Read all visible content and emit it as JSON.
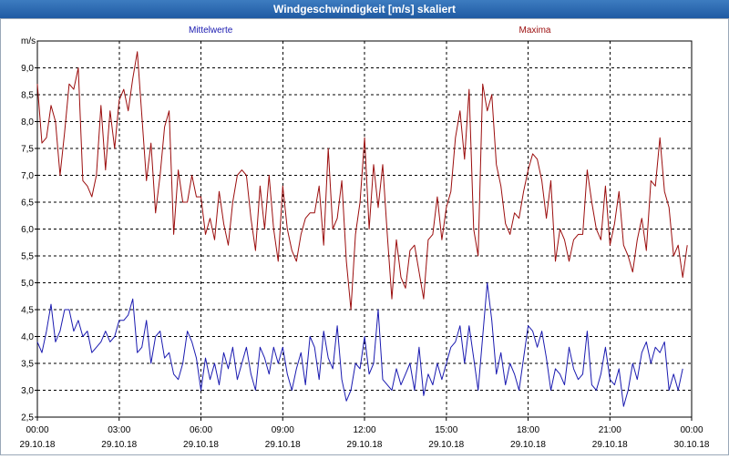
{
  "window": {
    "title": "Windgeschwindigkeit [m/s] skaliert"
  },
  "chart_data": {
    "type": "line",
    "title": "Windgeschwindigkeit [m/s] skaliert",
    "xlabel": "",
    "ylabel": "m/s",
    "xlim": [
      0,
      24
    ],
    "ylim": [
      2.5,
      9.5
    ],
    "grid": true,
    "legend_placement": "top",
    "y_ticks": [
      "2,5",
      "3,0",
      "3,5",
      "4,0",
      "4,5",
      "5,0",
      "5,5",
      "6,0",
      "6,5",
      "7,0",
      "7,5",
      "8,0",
      "8,5",
      "9,0"
    ],
    "y_tick_values": [
      2.5,
      3.0,
      3.5,
      4.0,
      4.5,
      5.0,
      5.5,
      6.0,
      6.5,
      7.0,
      7.5,
      8.0,
      8.5,
      9.0
    ],
    "x_ticks": [
      {
        "value": 0,
        "time": "00:00",
        "date": "29.10.18"
      },
      {
        "value": 3,
        "time": "03:00",
        "date": "29.10.18"
      },
      {
        "value": 6,
        "time": "06:00",
        "date": "29.10.18"
      },
      {
        "value": 9,
        "time": "09:00",
        "date": "29.10.18"
      },
      {
        "value": 12,
        "time": "12:00",
        "date": "29.10.18"
      },
      {
        "value": 15,
        "time": "15:00",
        "date": "29.10.18"
      },
      {
        "value": 18,
        "time": "18:00",
        "date": "29.10.18"
      },
      {
        "value": 21,
        "time": "21:00",
        "date": "29.10.18"
      },
      {
        "value": 24,
        "time": "00:00",
        "date": "30.10.18"
      }
    ],
    "series": [
      {
        "name": "Maxima",
        "color": "#9b0d0d",
        "x_start": 0,
        "x_step": 0.1667,
        "values": [
          8.7,
          7.6,
          7.7,
          8.3,
          8.0,
          7.0,
          7.8,
          8.7,
          8.6,
          9.0,
          6.9,
          6.8,
          6.6,
          7.0,
          8.3,
          7.1,
          8.2,
          7.5,
          8.4,
          8.6,
          8.2,
          8.8,
          9.3,
          8.1,
          6.9,
          7.6,
          6.3,
          7.0,
          7.9,
          8.2,
          5.9,
          7.1,
          6.5,
          6.5,
          7.0,
          6.6,
          6.6,
          5.9,
          6.2,
          5.8,
          6.7,
          6.1,
          5.7,
          6.5,
          7.0,
          7.1,
          7.0,
          6.2,
          5.6,
          6.8,
          6.0,
          7.0,
          6.0,
          5.4,
          6.8,
          6.0,
          5.6,
          5.4,
          5.9,
          6.2,
          6.3,
          6.3,
          6.8,
          5.7,
          7.5,
          6.0,
          6.2,
          6.9,
          5.4,
          4.5,
          5.9,
          6.5,
          7.7,
          6.0,
          7.2,
          6.4,
          7.2,
          5.9,
          4.7,
          5.8,
          5.1,
          4.9,
          5.6,
          5.7,
          5.2,
          4.7,
          5.8,
          5.9,
          6.6,
          5.8,
          6.4,
          6.7,
          7.7,
          8.2,
          7.3,
          8.6,
          6.0,
          5.5,
          8.7,
          8.2,
          8.5,
          7.2,
          6.8,
          6.1,
          5.9,
          6.3,
          6.2,
          6.7,
          7.1,
          7.4,
          7.3,
          6.9,
          6.2,
          6.9,
          5.4,
          6.0,
          5.8,
          5.4,
          5.8,
          5.9,
          5.9,
          7.1,
          6.5,
          6.0,
          5.8,
          6.8,
          5.7,
          6.1,
          6.7,
          5.7,
          5.5,
          5.2,
          5.8,
          6.2,
          5.6,
          6.9,
          6.8,
          7.7,
          6.7,
          6.4,
          5.5,
          5.7,
          5.1,
          5.7
        ]
      },
      {
        "name": "Mittelwerte",
        "color": "#1a1ab0",
        "x_start": 0,
        "x_step": 0.1667,
        "values": [
          3.9,
          3.7,
          4.1,
          4.6,
          3.9,
          4.1,
          4.5,
          4.5,
          4.1,
          4.3,
          4.0,
          4.1,
          3.7,
          3.8,
          3.9,
          4.1,
          3.9,
          4.0,
          4.3,
          4.3,
          4.4,
          4.7,
          3.7,
          3.8,
          4.3,
          3.5,
          4.0,
          4.1,
          3.6,
          3.7,
          3.3,
          3.2,
          3.5,
          4.1,
          3.9,
          3.6,
          3.0,
          3.6,
          3.2,
          3.5,
          3.1,
          3.7,
          3.4,
          3.8,
          3.2,
          3.5,
          3.8,
          3.3,
          3.0,
          3.8,
          3.6,
          3.3,
          3.8,
          3.5,
          3.8,
          3.3,
          3.0,
          3.4,
          3.7,
          3.1,
          4.0,
          3.8,
          3.2,
          4.1,
          3.6,
          3.4,
          4.2,
          3.2,
          2.8,
          3.0,
          3.5,
          3.4,
          4.0,
          3.3,
          3.5,
          4.5,
          3.2,
          3.1,
          3.0,
          3.4,
          3.1,
          3.3,
          3.5,
          3.0,
          3.8,
          2.9,
          3.3,
          3.1,
          3.5,
          3.2,
          3.5,
          3.8,
          3.9,
          4.2,
          3.5,
          4.2,
          3.6,
          3.0,
          4.0,
          5.0,
          4.3,
          3.3,
          3.7,
          3.1,
          3.5,
          3.3,
          3.0,
          3.6,
          4.2,
          4.1,
          3.8,
          4.1,
          3.6,
          3.0,
          3.4,
          3.3,
          3.1,
          3.8,
          3.4,
          3.2,
          3.3,
          4.1,
          3.1,
          3.0,
          3.3,
          3.8,
          3.2,
          3.1,
          3.4,
          2.7,
          3.0,
          3.5,
          3.2,
          3.7,
          3.9,
          3.5,
          3.8,
          3.7,
          3.9,
          3.0,
          3.3,
          3.0,
          3.4
        ]
      }
    ]
  }
}
